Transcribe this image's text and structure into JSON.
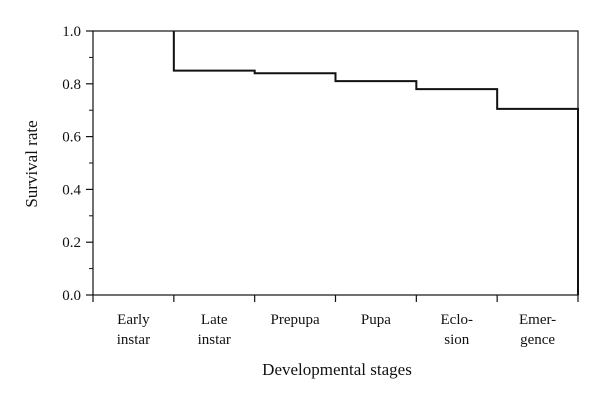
{
  "chart_data": {
    "type": "line",
    "step": true,
    "xlabel": "Developmental stages",
    "ylabel": "Survival rate",
    "ylim": [
      0,
      1.0
    ],
    "yticks": [
      "0.0",
      "0.2",
      "0.4",
      "0.6",
      "0.8",
      "1.0"
    ],
    "categories": [
      [
        "Early",
        "instar"
      ],
      [
        "Late",
        "instar"
      ],
      [
        "Prepupa"
      ],
      [
        "Pupa"
      ],
      [
        "Eclo-",
        "sion"
      ],
      [
        "Emer-",
        "gence"
      ]
    ],
    "series": [
      {
        "values": [
          1.0,
          0.85,
          0.84,
          0.81,
          0.78,
          0.705
        ]
      }
    ],
    "grid": false
  }
}
